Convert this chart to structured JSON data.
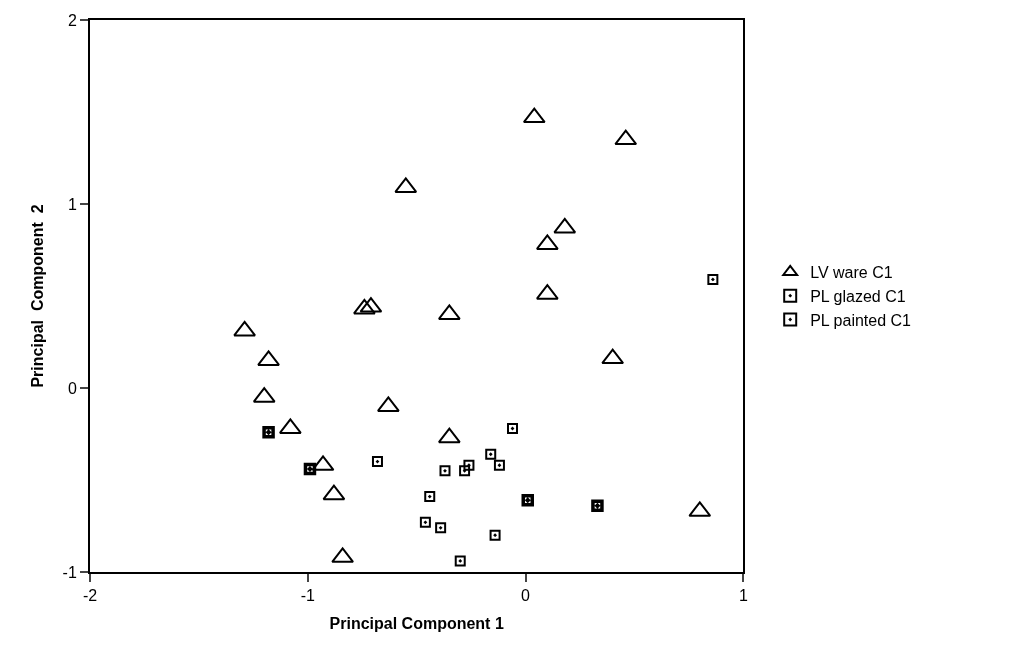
{
  "chart_data": {
    "type": "scatter",
    "xlabel": "Principal Component 1",
    "ylabel": "Principal  Component  2",
    "xlim": [
      -2,
      1
    ],
    "ylim": [
      -1,
      2
    ],
    "xticks": [
      -2,
      -1,
      0,
      1
    ],
    "yticks": [
      -1,
      0,
      1,
      2
    ],
    "grid": false,
    "legend": "right",
    "series": [
      {
        "name": "LV ware C1",
        "color": "#000000",
        "marker": "triangle",
        "x": [
          0.04,
          0.46,
          -0.55,
          0.18,
          0.1,
          0.1,
          -0.74,
          -0.71,
          -0.35,
          -1.29,
          -1.18,
          0.4,
          -1.2,
          -1.08,
          -0.63,
          -0.35,
          -0.93,
          -0.88,
          -0.84,
          0.8
        ],
        "values": [
          1.47,
          1.35,
          1.09,
          0.87,
          0.78,
          0.51,
          0.43,
          0.44,
          0.4,
          0.31,
          0.15,
          0.16,
          -0.05,
          -0.22,
          -0.1,
          -0.27,
          -0.42,
          -0.58,
          -0.92,
          -0.67
        ]
      },
      {
        "name": "PL glazed C1",
        "color": "#000000",
        "marker": "square",
        "x": [
          -0.68,
          -0.06,
          -0.37,
          -0.28,
          -0.26,
          -0.16,
          -0.12,
          -0.44,
          -0.46,
          -0.39,
          -0.14,
          -0.3,
          0.86
        ],
        "values": [
          -0.4,
          -0.22,
          -0.45,
          -0.45,
          -0.42,
          -0.36,
          -0.42,
          -0.59,
          -0.73,
          -0.76,
          -0.8,
          -0.94,
          0.59
        ]
      },
      {
        "name": "PL painted C1",
        "color": "#000000",
        "marker": "square",
        "x": [
          -1.18,
          -0.99,
          0.01,
          0.33
        ],
        "values": [
          -0.24,
          -0.44,
          -0.61,
          -0.64
        ]
      }
    ]
  }
}
